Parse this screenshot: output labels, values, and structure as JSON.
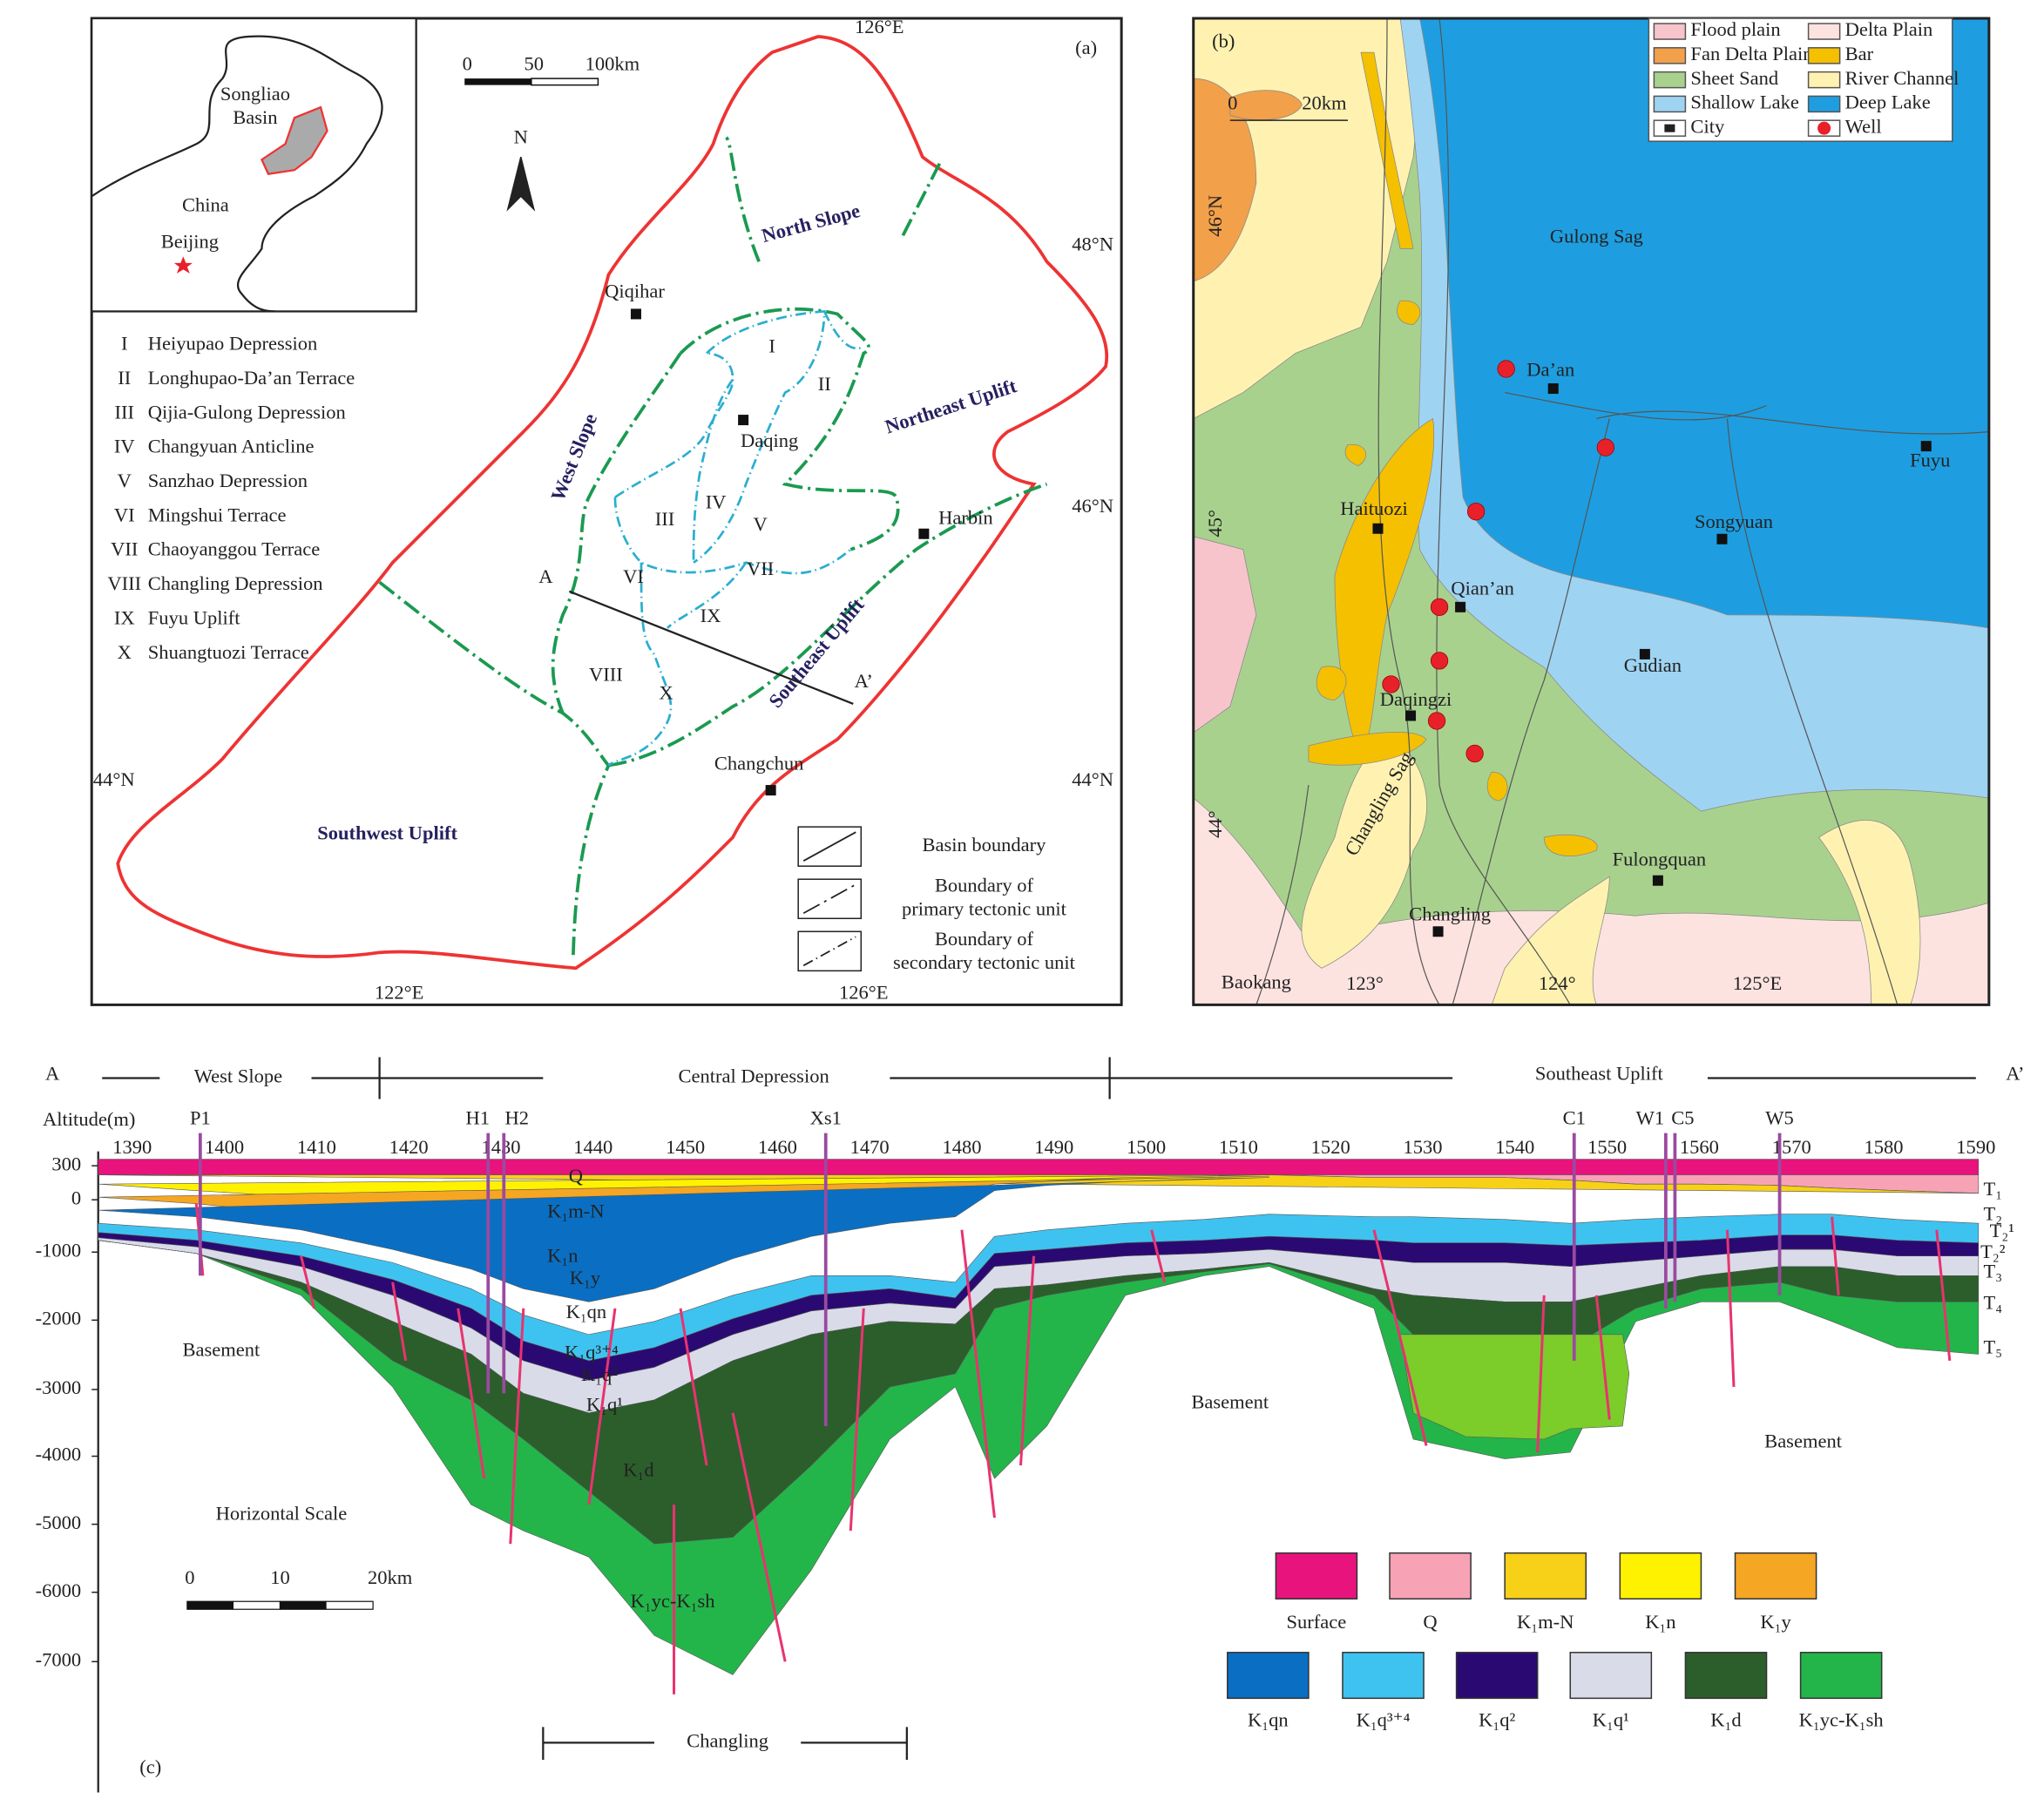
{
  "panel_a": {
    "label": "(a)",
    "inset": {
      "songliao": "Songliao",
      "basin": "Basin",
      "china": "China",
      "beijing": "Beijing"
    },
    "scale_bar": [
      0,
      50,
      "100km"
    ],
    "north": "N",
    "coords": [
      "126°E",
      "48°N",
      "46°N",
      "44°N",
      "44°N",
      "122°E",
      "126°E"
    ],
    "units_legend": [
      {
        "numeral": "I",
        "name": "Heiyupao Depression"
      },
      {
        "numeral": "II",
        "name": "Longhupao-Da’an Terrace"
      },
      {
        "numeral": "III",
        "name": "Qijia-Gulong Depression"
      },
      {
        "numeral": "IV",
        "name": "Changyuan Anticline"
      },
      {
        "numeral": "V",
        "name": "Sanzhao Depression"
      },
      {
        "numeral": "VI",
        "name": "Mingshui Terrace"
      },
      {
        "numeral": "VII",
        "name": "Chaoyanggou Terrace"
      },
      {
        "numeral": "VIII",
        "name": "Changling Depression"
      },
      {
        "numeral": "IX",
        "name": "Fuyu Uplift"
      },
      {
        "numeral": "X",
        "name": "Shuangtuozi Terrace"
      }
    ],
    "regions": [
      "North Slope",
      "West Slope",
      "Northeast Uplift",
      "Southeast Uplift",
      "Southwest Uplift"
    ],
    "unit_labels": [
      "I",
      "II",
      "III",
      "IV",
      "V",
      "VI",
      "VII",
      "VIII",
      "IX",
      "X"
    ],
    "cities": [
      "Qiqihar",
      "Daqing",
      "Harbin",
      "Changchun"
    ],
    "section": [
      "A",
      "A’"
    ],
    "boundary_legend": [
      "Basin boundary",
      "Boundary of",
      "primary tectonic unit",
      "Boundary of",
      "secondary tectonic unit"
    ]
  },
  "panel_b": {
    "label": "(b)",
    "legend": [
      {
        "name": "Flood plain",
        "color": "#f7c4cc"
      },
      {
        "name": "Delta Plain",
        "color": "#fde3e0"
      },
      {
        "name": "Fan Delta Plain",
        "color": "#f2a04a"
      },
      {
        "name": "Bar",
        "color": "#f5c000"
      },
      {
        "name": "Sheet Sand",
        "color": "#a9d18e"
      },
      {
        "name": "River Channel",
        "color": "#fff2b0"
      },
      {
        "name": "Shallow Lake",
        "color": "#9fd3f2"
      },
      {
        "name": "Deep Lake",
        "color": "#1e9ee0"
      },
      {
        "name": "City",
        "color": "#222222"
      },
      {
        "name": "Well",
        "color": "#e8202a"
      }
    ],
    "scale_bar": [
      0,
      "20km"
    ],
    "coords": [
      "46°N",
      "45°",
      "44°",
      "123°",
      "124°",
      "125°E"
    ],
    "sags": [
      "Gulong Sag",
      "Changling Sag"
    ],
    "cities": [
      "Da’an",
      "Fuyu",
      "Haituozi",
      "Songyuan",
      "Qian’an",
      "Gudian",
      "Daqingzi",
      "Fulongquan",
      "Changling",
      "Baokang"
    ]
  },
  "panel_c": {
    "label": "(c)",
    "ends": [
      "A",
      "A’"
    ],
    "zones": [
      "West Slope",
      "Central Depression",
      "Southeast Uplift"
    ],
    "y_label": "Altitude(m)",
    "x_ticks": [
      1390,
      1400,
      1410,
      1420,
      1430,
      1440,
      1450,
      1460,
      1470,
      1480,
      1490,
      1500,
      1510,
      1520,
      1530,
      1540,
      1550,
      1560,
      1570,
      1580,
      1590
    ],
    "y_ticks": [
      300,
      0,
      -1000,
      -2000,
      -3000,
      -4000,
      -5000,
      -6000,
      -7000
    ],
    "wells": [
      "P1",
      "H1",
      "H2",
      "Xs1",
      "C1",
      "W1",
      "C5",
      "W5"
    ],
    "layer_labels": [
      "Q",
      "K₁m-N",
      "K₁n",
      "K₁y",
      "K₁qn",
      "K₁q³⁺⁴",
      "K₁q²",
      "K₁q¹",
      "K₁d",
      "K₁yc-K₁sh"
    ],
    "reflectors": [
      "T₁",
      "T₂",
      "T₂¹",
      "T₂²",
      "T₃",
      "T₄",
      "T₅"
    ],
    "basement": [
      "Basement",
      "Basement",
      "Basement"
    ],
    "horizontal_scale": "Horizontal Scale",
    "scale_bar": [
      0,
      10,
      "20km"
    ],
    "changling": "Changling",
    "legend": [
      {
        "name": "Surface",
        "color": "#e8137d"
      },
      {
        "name": "Q",
        "color": "#f7a3b5"
      },
      {
        "name": "K₁m-N",
        "color": "#f7d117"
      },
      {
        "name": "K₁n",
        "color": "#fff200"
      },
      {
        "name": "K₁y",
        "color": "#f5a623"
      },
      {
        "name": "K₁qn",
        "color": "#0a6fc2"
      },
      {
        "name": "K₁q³⁺⁴",
        "color": "#3ec3f0"
      },
      {
        "name": "K₁q²",
        "color": "#2a0a72"
      },
      {
        "name": "K₁q¹",
        "color": "#d9dce8"
      },
      {
        "name": "K₁d",
        "color": "#2b5e2b"
      },
      {
        "name": "K₁yc-K₁sh",
        "color": "#23b54a"
      }
    ]
  }
}
